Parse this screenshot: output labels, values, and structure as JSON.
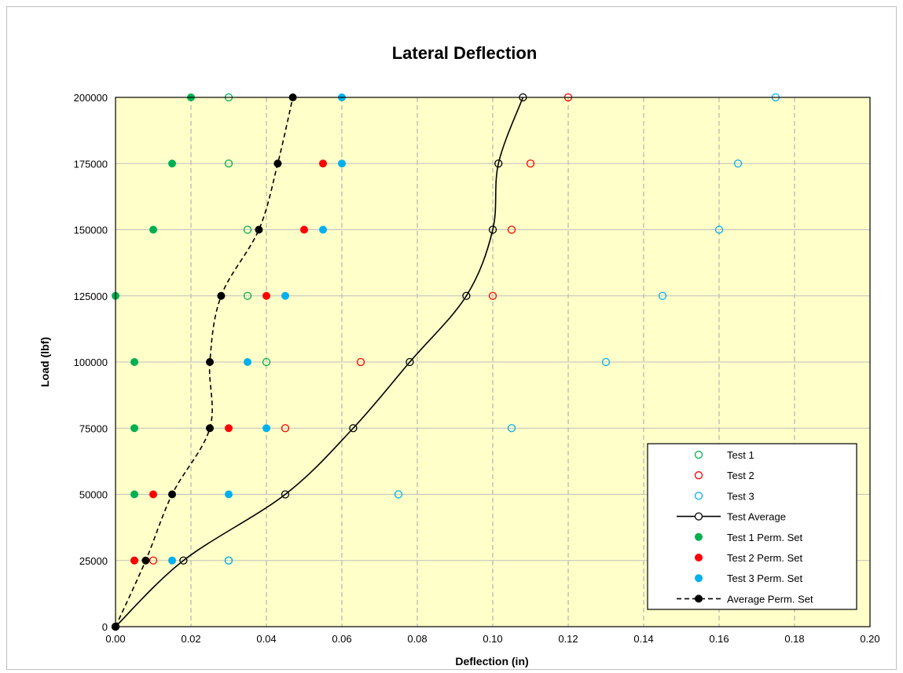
{
  "chart_data": {
    "type": "scatter",
    "title": "Lateral Deflection",
    "xlabel": "Deflection (in)",
    "ylabel": "Load (lbf)",
    "xlim": [
      0,
      0.2
    ],
    "ylim": [
      0,
      200000
    ],
    "x_ticks": [
      "0.00",
      "0.02",
      "0.04",
      "0.06",
      "0.08",
      "0.10",
      "0.12",
      "0.14",
      "0.16",
      "0.18",
      "0.20"
    ],
    "y_ticks": [
      "0",
      "25000",
      "50000",
      "75000",
      "100000",
      "125000",
      "150000",
      "175000",
      "200000"
    ],
    "grid": "dashed vertical and solid horizontal gridlines",
    "plot_background": "#ffffc9",
    "legend_position": "bottom-right",
    "series": [
      {
        "name": "Test 1",
        "marker": "hollow-circle",
        "color": "#00b050",
        "points": [
          [
            0.03,
            25000
          ],
          [
            0.04,
            100000
          ],
          [
            0.035,
            125000
          ],
          [
            0.035,
            150000
          ],
          [
            0.03,
            175000
          ],
          [
            0.03,
            200000
          ]
        ]
      },
      {
        "name": "Test 2",
        "marker": "hollow-circle",
        "color": "#ff0000",
        "points": [
          [
            0.01,
            25000
          ],
          [
            0.045,
            75000
          ],
          [
            0.065,
            100000
          ],
          [
            0.1,
            125000
          ],
          [
            0.105,
            150000
          ],
          [
            0.11,
            175000
          ],
          [
            0.12,
            200000
          ]
        ]
      },
      {
        "name": "Test 3",
        "marker": "hollow-circle",
        "color": "#00b0f0",
        "points": [
          [
            0.03,
            25000
          ],
          [
            0.075,
            50000
          ],
          [
            0.105,
            75000
          ],
          [
            0.13,
            100000
          ],
          [
            0.145,
            125000
          ],
          [
            0.16,
            150000
          ],
          [
            0.165,
            175000
          ],
          [
            0.175,
            200000
          ]
        ]
      },
      {
        "name": "Test Average",
        "marker": "hollow-circle-line",
        "color": "#000000",
        "points": [
          [
            0,
            0
          ],
          [
            0.018,
            25000
          ],
          [
            0.045,
            50000
          ],
          [
            0.063,
            75000
          ],
          [
            0.078,
            100000
          ],
          [
            0.093,
            125000
          ],
          [
            0.1,
            150000
          ],
          [
            0.1015,
            175000
          ],
          [
            0.108,
            200000
          ]
        ]
      },
      {
        "name": "Test 1 Perm. Set",
        "marker": "filled-circle",
        "color": "#00b050",
        "points": [
          [
            0.005,
            25000
          ],
          [
            0.005,
            50000
          ],
          [
            0.005,
            75000
          ],
          [
            0.005,
            100000
          ],
          [
            0,
            125000
          ],
          [
            0.01,
            150000
          ],
          [
            0.015,
            175000
          ],
          [
            0.02,
            200000
          ]
        ]
      },
      {
        "name": "Test 2 Perm. Set",
        "marker": "filled-circle",
        "color": "#ff0000",
        "points": [
          [
            0.005,
            25000
          ],
          [
            0.01,
            50000
          ],
          [
            0.03,
            75000
          ],
          [
            0.04,
            125000
          ],
          [
            0.05,
            150000
          ],
          [
            0.055,
            175000
          ]
        ]
      },
      {
        "name": "Test 3 Perm. Set",
        "marker": "filled-circle",
        "color": "#00b0f0",
        "points": [
          [
            0.015,
            25000
          ],
          [
            0.03,
            50000
          ],
          [
            0.04,
            75000
          ],
          [
            0.035,
            100000
          ],
          [
            0.045,
            125000
          ],
          [
            0.055,
            150000
          ],
          [
            0.06,
            175000
          ],
          [
            0.06,
            200000
          ]
        ]
      },
      {
        "name": "Average Perm. Set",
        "marker": "filled-circle-dashed-line",
        "color": "#000000",
        "points": [
          [
            0,
            0
          ],
          [
            0.008,
            25000
          ],
          [
            0.015,
            50000
          ],
          [
            0.025,
            75000
          ],
          [
            0.025,
            100000
          ],
          [
            0.028,
            125000
          ],
          [
            0.038,
            150000
          ],
          [
            0.043,
            175000
          ],
          [
            0.047,
            200000
          ]
        ]
      }
    ]
  }
}
